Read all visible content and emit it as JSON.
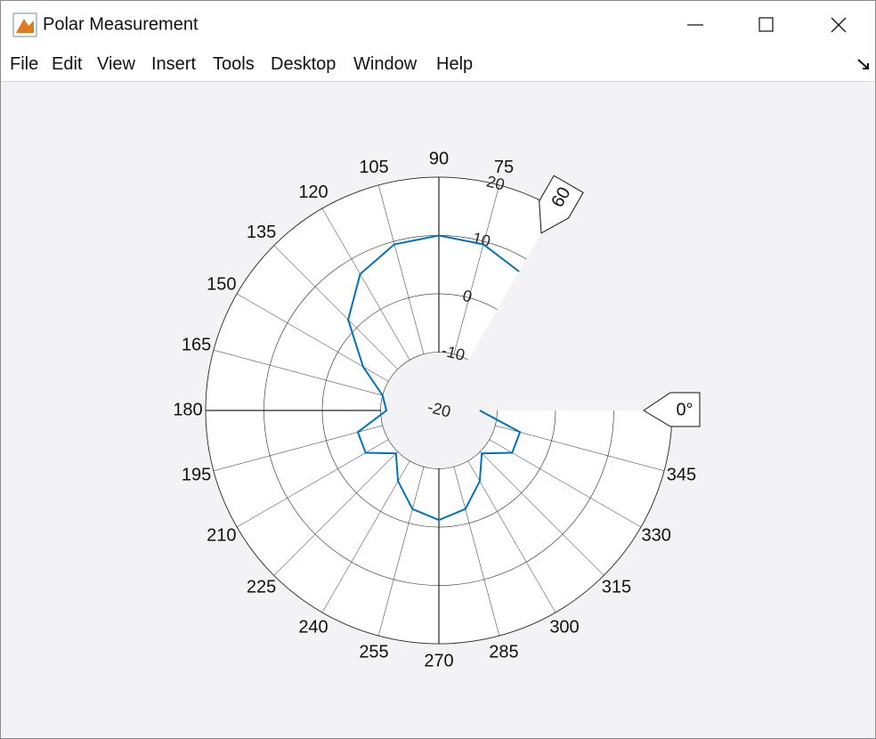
{
  "window": {
    "title": "Polar Measurement",
    "menu": [
      "File",
      "Edit",
      "View",
      "Insert",
      "Tools",
      "Desktop",
      "Window",
      "Help"
    ]
  },
  "chart_data": {
    "type": "polar",
    "x": [
      60,
      75,
      90,
      105,
      120,
      135,
      150,
      165,
      180,
      195,
      210,
      225,
      240,
      255,
      270,
      285,
      300,
      315,
      330,
      345,
      360
    ],
    "values": [
      7.5,
      9.5,
      10,
      9.5,
      7,
      2,
      -5,
      -10,
      -11,
      -5.6,
      -5.5,
      -9.6,
      -6,
      -2.5,
      -1.2,
      -2.5,
      -6,
      -9.6,
      -5.5,
      -5.6,
      -13
    ],
    "color": "#0072bd",
    "thetaticks": [
      75,
      90,
      105,
      120,
      135,
      150,
      165,
      180,
      195,
      210,
      225,
      240,
      255,
      270,
      285,
      300,
      315,
      330,
      345
    ],
    "rlim": [
      -20,
      20
    ],
    "rticks": [
      -20,
      -10,
      0,
      10,
      20
    ],
    "span": [
      {
        "value": 0,
        "label": "0°"
      },
      60
    ],
    "grid": true
  }
}
